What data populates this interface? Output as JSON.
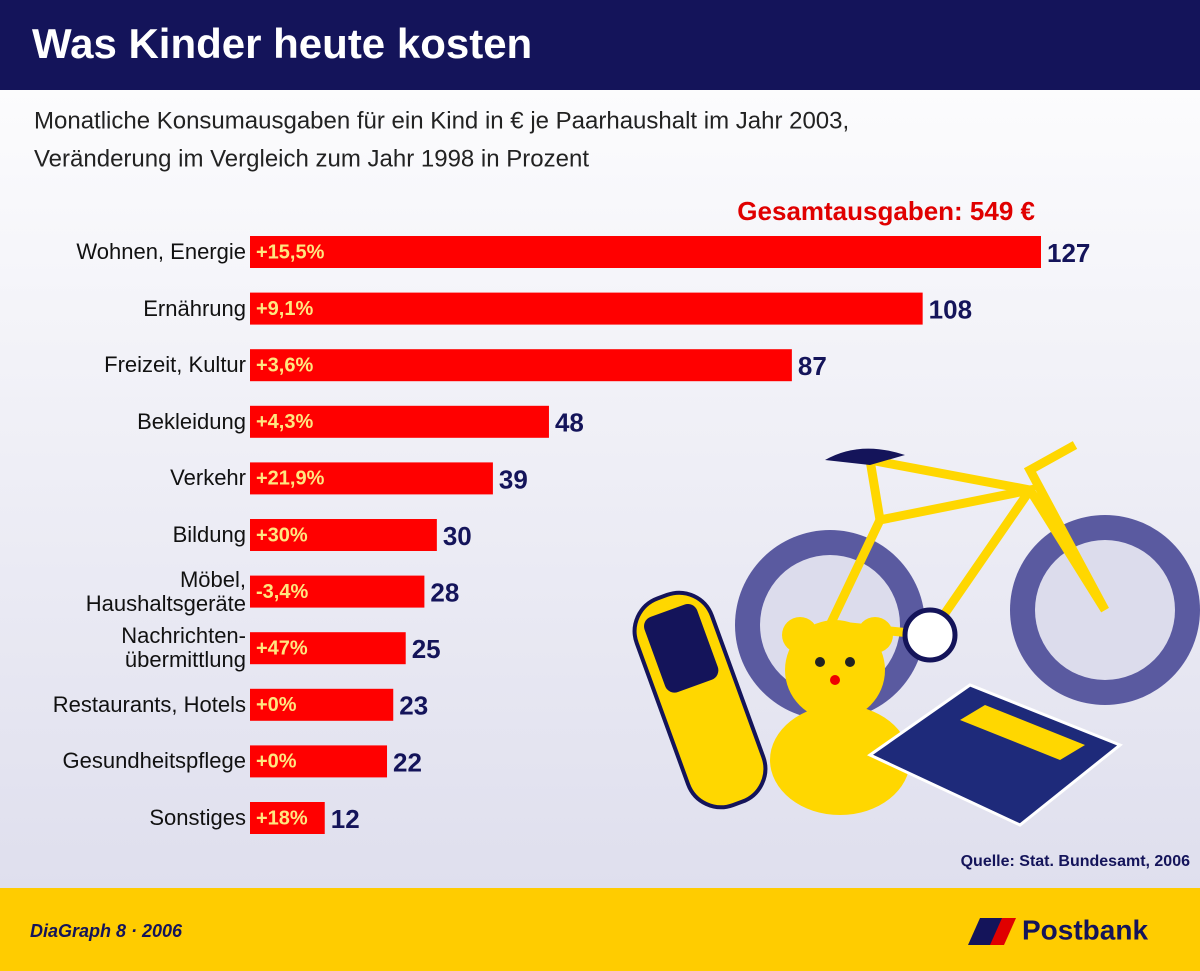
{
  "chart_data": {
    "type": "bar",
    "title": "Was Kinder heute kosten",
    "subtitle": [
      "Monatliche Konsumausgaben für ein Kind in € je Paarhaushalt im Jahr 2003,",
      "Veränderung im Vergleich zum Jahr 1998 in Prozent"
    ],
    "total_label": "Gesamtausgaben: 549 €",
    "categories": [
      "Wohnen, Energie",
      "Ernährung",
      "Freizeit, Kultur",
      "Bekleidung",
      "Verkehr",
      "Bildung",
      "Möbel,\nHaushaltsgeräte",
      "Nachrichten-\nübermittlung",
      "Restaurants, Hotels",
      "Gesundheitspflege",
      "Sonstiges"
    ],
    "values": [
      127,
      108,
      87,
      48,
      39,
      30,
      28,
      25,
      23,
      22,
      12
    ],
    "change_labels": [
      "+15,5%",
      "+9,1%",
      "+3,6%",
      "+4,3%",
      "+21,9%",
      "+30%",
      "-3,4%",
      "+47%",
      "+0%",
      "+0%",
      "+18%"
    ],
    "color": "#ff0000",
    "source": "Quelle: Stat. Bundesamt, 2006",
    "footer": "DiaGraph 8 · 2006",
    "brand": "Postbank"
  }
}
